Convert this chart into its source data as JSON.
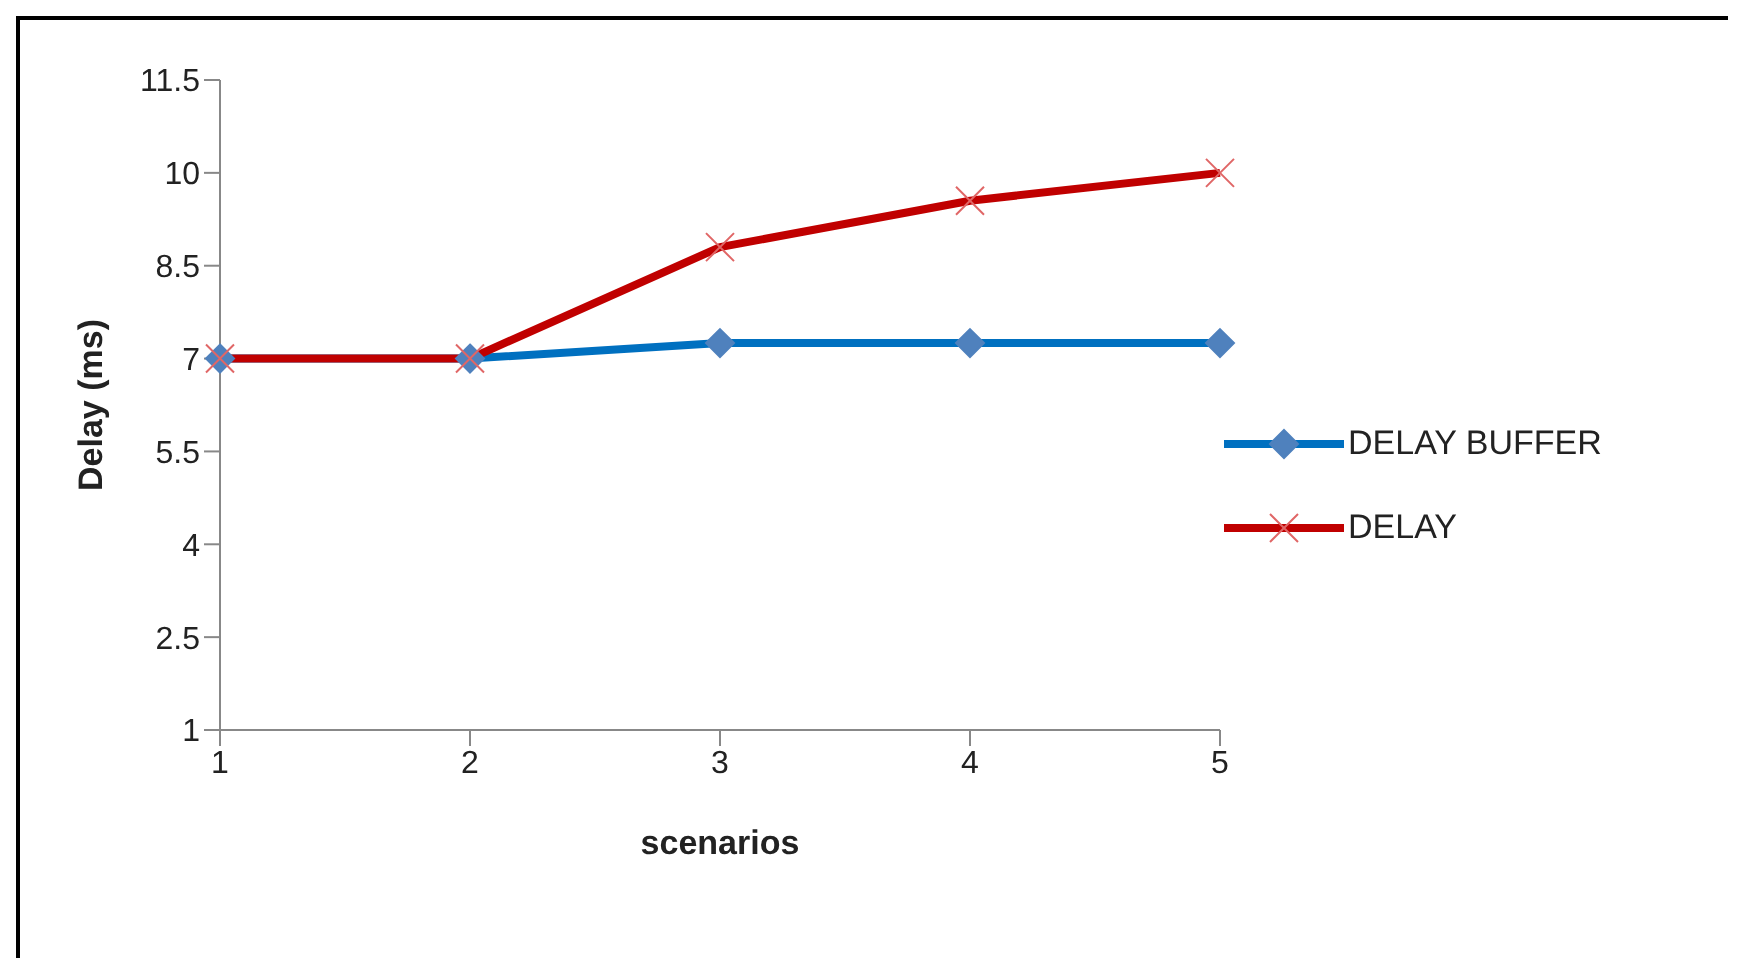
{
  "chart_data": {
    "type": "line",
    "xlabel": "scenarios",
    "ylabel": "Delay (ms)",
    "categories": [
      "1",
      "2",
      "3",
      "4",
      "5"
    ],
    "series": [
      {
        "name": "DELAY BUFFER",
        "color": "#0070c0",
        "marker": "diamond",
        "values": [
          7,
          7,
          7.25,
          7.25,
          7.25
        ]
      },
      {
        "name": "DELAY",
        "color": "#c00000",
        "marker": "cross",
        "values": [
          7,
          7,
          8.8,
          9.55,
          10
        ]
      }
    ],
    "ylim": [
      1,
      11.5
    ],
    "yticks": [
      1,
      2.5,
      4,
      5.5,
      7,
      8.5,
      10,
      11.5
    ],
    "grid": false,
    "legend": "right"
  }
}
